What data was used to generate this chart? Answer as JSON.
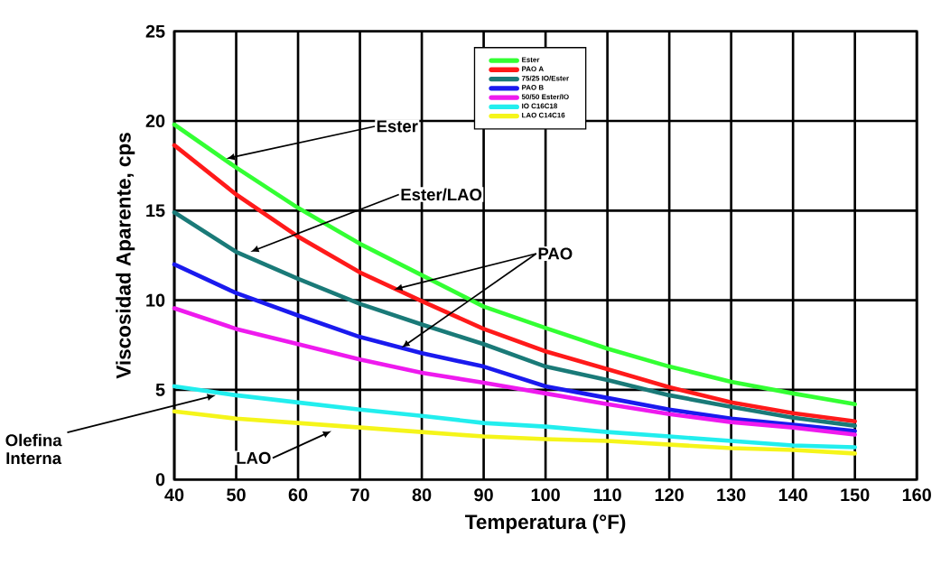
{
  "chart_data": {
    "type": "line",
    "xlabel": "Temperatura (°F)",
    "ylabel": "Viscosidad Aparente, cps",
    "x": [
      40,
      50,
      60,
      70,
      80,
      90,
      100,
      110,
      120,
      130,
      140,
      150
    ],
    "series": [
      {
        "name": "Ester",
        "color": "#33ff33",
        "values": [
          19.8,
          17.4,
          15.15,
          13.15,
          11.4,
          9.65,
          8.45,
          7.3,
          6.3,
          5.45,
          4.8,
          4.2
        ]
      },
      {
        "name": "PAO A",
        "color": "#ff1a1a",
        "values": [
          18.65,
          15.9,
          13.55,
          11.55,
          9.95,
          8.4,
          7.15,
          6.15,
          5.15,
          4.3,
          3.7,
          3.25
        ]
      },
      {
        "name": "75/25 IO/Ester",
        "color": "#1a7a78",
        "values": [
          14.9,
          12.7,
          11.2,
          9.8,
          8.65,
          7.55,
          6.3,
          5.55,
          4.7,
          4.05,
          3.45,
          3.0
        ]
      },
      {
        "name": "PAO B",
        "color": "#1a1aee",
        "values": [
          12.0,
          10.4,
          9.15,
          7.95,
          7.05,
          6.3,
          5.2,
          4.55,
          3.9,
          3.4,
          3.05,
          2.7
        ]
      },
      {
        "name": "50/50 Ester/IO",
        "color": "#ee1aee",
        "values": [
          9.55,
          8.4,
          7.55,
          6.7,
          5.95,
          5.4,
          4.8,
          4.2,
          3.65,
          3.2,
          2.9,
          2.5
        ]
      },
      {
        "name": "IO C16C18",
        "color": "#22eeee",
        "values": [
          5.2,
          4.7,
          4.3,
          3.9,
          3.55,
          3.15,
          2.95,
          2.65,
          2.4,
          2.15,
          1.9,
          1.8
        ]
      },
      {
        "name": "LAO C14C16",
        "color": "#f5f51a",
        "values": [
          3.8,
          3.4,
          3.15,
          2.9,
          2.65,
          2.4,
          2.25,
          2.15,
          1.95,
          1.75,
          1.65,
          1.45
        ]
      }
    ],
    "xlim": [
      40,
      160
    ],
    "ylim": [
      0,
      25
    ],
    "xticks": [
      40,
      50,
      60,
      70,
      80,
      90,
      100,
      110,
      120,
      130,
      140,
      150,
      160
    ],
    "yticks": [
      0,
      5,
      10,
      15,
      20,
      25
    ],
    "grid": true,
    "legend": "top right",
    "marker": "none",
    "line_style": "solid",
    "annotations": [
      {
        "text": "Ester",
        "x": 48.4,
        "y": 17.9
      },
      {
        "text": "Ester/LAO",
        "x": 52.3,
        "y": 12.7
      },
      {
        "text": "PAO",
        "x": 75.5,
        "y": 10.6
      },
      {
        "text": "Olefina Interna",
        "x": 46.7,
        "y": 4.7
      },
      {
        "text": "LAO",
        "x": 65.4,
        "y": 2.7
      }
    ]
  }
}
